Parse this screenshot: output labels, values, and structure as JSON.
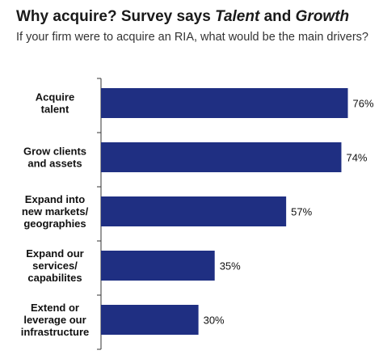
{
  "header": {
    "title_prefix": "Why acquire? Survey says ",
    "title_em1": "Talent",
    "title_mid": " and ",
    "title_em2": "Growth",
    "subtitle": "If your firm were to acquire an RIA, what would be the main drivers?"
  },
  "colors": {
    "bar": "#1f2f82",
    "axis": "#333333"
  },
  "chart_data": {
    "type": "bar",
    "orientation": "horizontal",
    "categories": [
      [
        "Acquire",
        "talent"
      ],
      [
        "Grow clients",
        "and assets"
      ],
      [
        "Expand into",
        "new markets/",
        "geographies"
      ],
      [
        "Expand our",
        "services/",
        "capabilites"
      ],
      [
        "Extend or",
        "leverage our",
        "infrastructure"
      ]
    ],
    "values": [
      76,
      74,
      57,
      35,
      30
    ],
    "value_labels": [
      "76%",
      "74%",
      "57%",
      "35%",
      "30%"
    ],
    "xlim": [
      0,
      100
    ],
    "grid": false,
    "legend": "none"
  }
}
